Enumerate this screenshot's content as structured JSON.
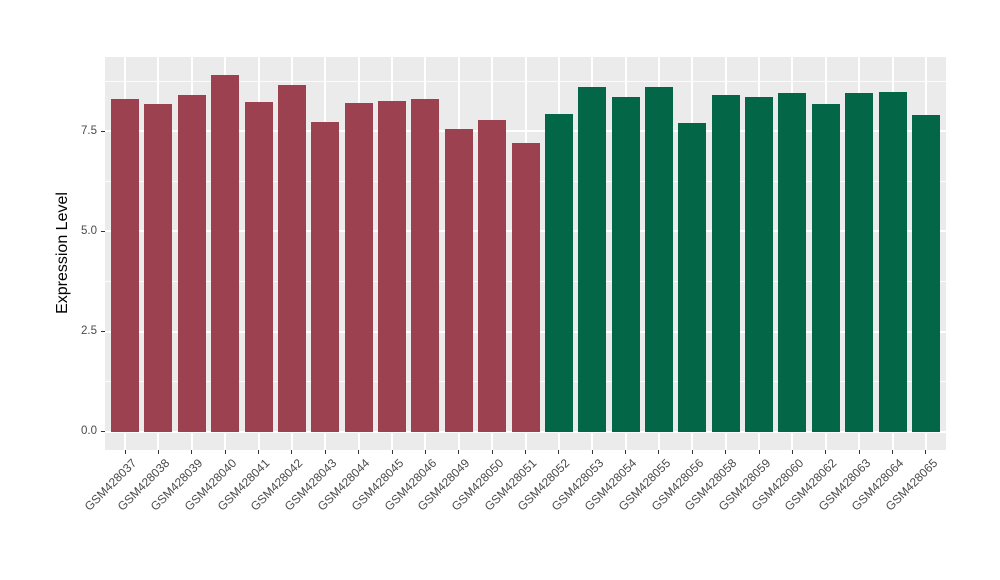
{
  "chart_data": {
    "type": "bar",
    "title": "",
    "xlabel": "",
    "ylabel": "Expression Level",
    "categories": [
      "GSM428037",
      "GSM428038",
      "GSM428039",
      "GSM428040",
      "GSM428041",
      "GSM428042",
      "GSM428043",
      "GSM428044",
      "GSM428045",
      "GSM428046",
      "GSM428049",
      "GSM428050",
      "GSM428051",
      "GSM428052",
      "GSM428053",
      "GSM428054",
      "GSM428055",
      "GSM428056",
      "GSM428058",
      "GSM428059",
      "GSM428060",
      "GSM428062",
      "GSM428063",
      "GSM428064",
      "GSM428065"
    ],
    "values": [
      8.31,
      8.18,
      8.41,
      8.91,
      8.23,
      8.66,
      7.72,
      8.2,
      8.26,
      8.3,
      7.56,
      7.79,
      7.21,
      7.93,
      8.61,
      8.36,
      8.61,
      7.71,
      8.39,
      8.35,
      8.46,
      8.19,
      8.45,
      8.48,
      7.91
    ],
    "bar_group_index": [
      0,
      0,
      0,
      0,
      0,
      0,
      0,
      0,
      0,
      0,
      0,
      0,
      0,
      1,
      1,
      1,
      1,
      1,
      1,
      1,
      1,
      1,
      1,
      1,
      1
    ],
    "group_colors": [
      "#9C4150",
      "#026647"
    ],
    "yticks": [
      0,
      2.5,
      5,
      7.5
    ],
    "ytick_labels": [
      "0.0",
      "2.5",
      "5.0",
      "7.5"
    ],
    "ylim": [
      -0.45,
      9.35
    ],
    "grid": true,
    "legend_position": "none",
    "panel_bg": "#EBEBEB",
    "grid_color": "#FFFFFF",
    "axis_text_color": "#4a4a4a"
  }
}
